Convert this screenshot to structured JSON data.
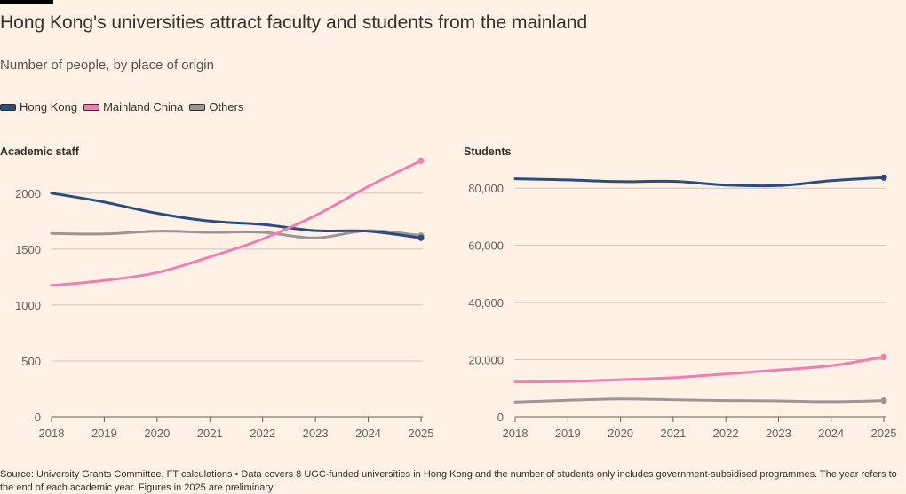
{
  "title": "Hong Kong's universities attract faculty and students from the mainland",
  "subtitle": "Number of people, by place of origin",
  "legend": [
    {
      "label": "Hong Kong",
      "color": "#2A4C7E"
    },
    {
      "label": "Mainland China",
      "color": "#F07EB2"
    },
    {
      "label": "Others",
      "color": "#9A9696"
    }
  ],
  "source": "Source: University Grants Committee, FT calculations • Data covers 8 UGC-funded universities in Hong Kong and the number of students only includes government-subsidised programmes. The year refers to the end of each academic year. Figures in 2025 are preliminary",
  "chart_data": [
    {
      "type": "line",
      "title": "Academic staff",
      "x": [
        2018,
        2019,
        2020,
        2021,
        2022,
        2023,
        2024,
        2025
      ],
      "xlim": [
        2018,
        2025
      ],
      "ylim": [
        0,
        2300
      ],
      "yticks": [
        0,
        500,
        1000,
        1500,
        2000
      ],
      "ytick_labels": [
        "0",
        "500",
        "1000",
        "1500",
        "2000"
      ],
      "grid": true,
      "series": [
        {
          "name": "Hong Kong",
          "color": "#2A4C7E",
          "values": [
            2000,
            1920,
            1820,
            1750,
            1720,
            1665,
            1660,
            1600
          ]
        },
        {
          "name": "Mainland China",
          "color": "#F07EB2",
          "values": [
            1175,
            1220,
            1290,
            1430,
            1590,
            1800,
            2060,
            2290
          ]
        },
        {
          "name": "Others",
          "color": "#9A9696",
          "values": [
            1640,
            1635,
            1660,
            1650,
            1650,
            1600,
            1665,
            1620
          ]
        }
      ]
    },
    {
      "type": "line",
      "title": "Students",
      "x": [
        2018,
        2019,
        2020,
        2021,
        2022,
        2023,
        2024,
        2025
      ],
      "xlim": [
        2018,
        2025
      ],
      "ylim": [
        0,
        90000
      ],
      "yticks": [
        0,
        20000,
        40000,
        60000,
        80000
      ],
      "ytick_labels": [
        "0",
        "20,000",
        "40,000",
        "60,000",
        "80,000"
      ],
      "grid": true,
      "series": [
        {
          "name": "Hong Kong",
          "color": "#2A4C7E",
          "values": [
            83300,
            82900,
            82300,
            82400,
            81100,
            80900,
            82600,
            83700
          ]
        },
        {
          "name": "Mainland China",
          "color": "#F07EB2",
          "values": [
            12200,
            12400,
            13000,
            13700,
            15000,
            16400,
            17900,
            21000
          ]
        },
        {
          "name": "Others",
          "color": "#9A9696",
          "values": [
            5200,
            5800,
            6300,
            6000,
            5700,
            5600,
            5300,
            5700
          ]
        }
      ]
    }
  ]
}
